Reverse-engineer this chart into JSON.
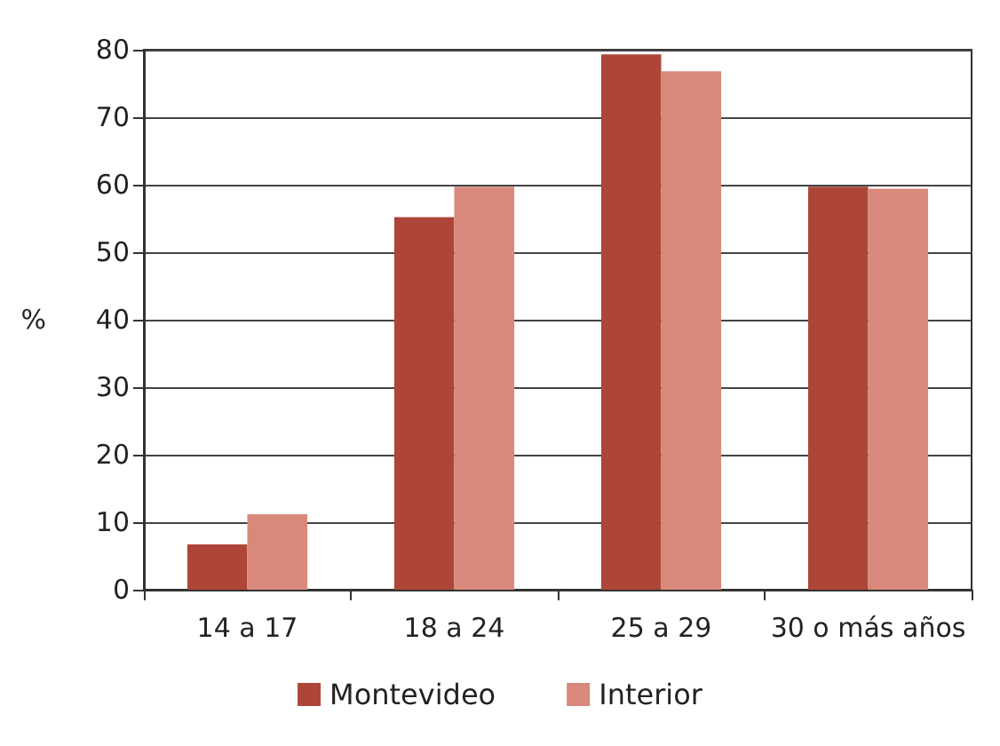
{
  "chart_data": {
    "type": "bar",
    "ylabel": "%",
    "categories": [
      "14 a 17",
      "18 a 24",
      "25 a 29",
      "30 o más años"
    ],
    "series": [
      {
        "name": "Montevideo",
        "color": "#ad4638",
        "values": [
          6.7,
          55.2,
          79.3,
          59.7
        ]
      },
      {
        "name": "Interior",
        "color": "#d9897b",
        "values": [
          11.2,
          59.7,
          76.8,
          59.4
        ]
      }
    ],
    "ylim": [
      0,
      80
    ],
    "yticks": [
      0,
      10,
      20,
      30,
      40,
      50,
      60,
      70,
      80
    ],
    "grid": "y",
    "legend": "bottom"
  }
}
